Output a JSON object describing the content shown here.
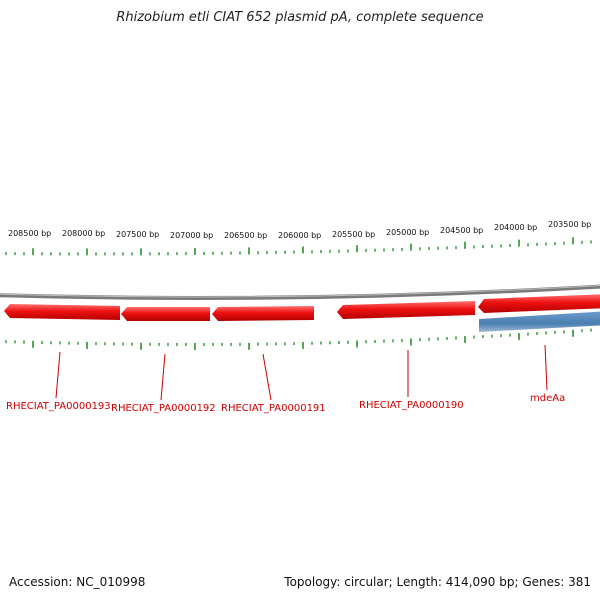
{
  "title": "Rhizobium etli CIAT 652 plasmid pA, complete sequence",
  "footer": {
    "accession": "Accession: NC_010998",
    "summary": "Topology: circular; Length: 414,090 bp; Genes: 381"
  },
  "colors": {
    "forward_gene": "#ee1111",
    "reverse_gene_strand": "#4a7fb0",
    "tick": "#1a8a1a",
    "backbone": "#888888",
    "label": "#cc0000"
  },
  "scale_labels": [
    "208500 bp",
    "208000 bp",
    "207500 bp",
    "207000 bp",
    "206500 bp",
    "206000 bp",
    "205500 bp",
    "205000 bp",
    "204500 bp",
    "204000 bp",
    "203500 bp"
  ],
  "genes": [
    {
      "name": "RHECIAT_PA0000193",
      "strand": "reverse"
    },
    {
      "name": "RHECIAT_PA0000192",
      "strand": "reverse"
    },
    {
      "name": "RHECIAT_PA0000191",
      "strand": "reverse"
    },
    {
      "name": "RHECIAT_PA0000190",
      "strand": "reverse"
    },
    {
      "name": "mdeAa",
      "strand": "reverse"
    }
  ]
}
